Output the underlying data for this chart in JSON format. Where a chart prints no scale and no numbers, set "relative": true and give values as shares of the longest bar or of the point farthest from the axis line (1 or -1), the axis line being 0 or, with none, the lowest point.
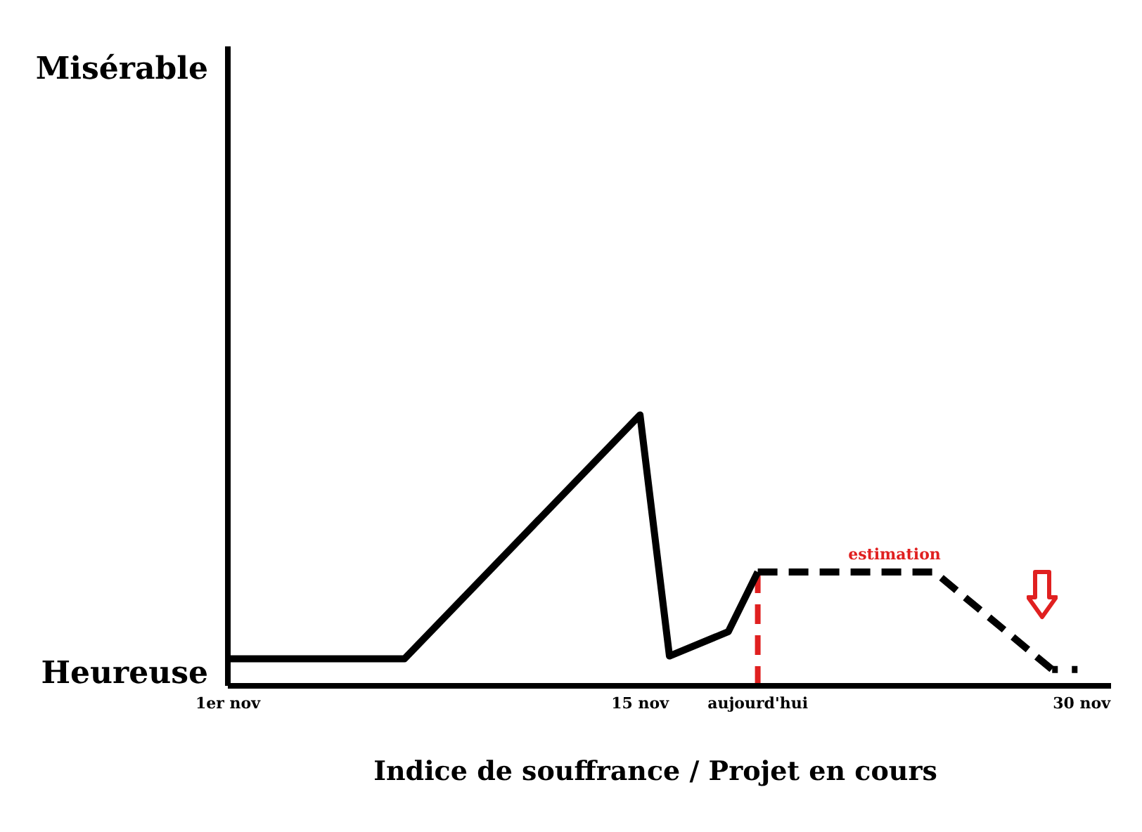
{
  "chart_data": {
    "type": "line",
    "relative": true,
    "xlabel": "Indice de souffrance / Projet en cours",
    "xlim": [
      "--11-01",
      "--12-01"
    ],
    "xticks": [
      {
        "value": "--11-01",
        "label": "1er nov"
      },
      {
        "value": "--11-15",
        "label": "15 nov"
      },
      {
        "value": "--11-19",
        "label": "aujourd'hui"
      },
      {
        "value": "--11-30",
        "label": "30 nov"
      }
    ],
    "marker": "none",
    "series": [
      {
        "color": "#000000",
        "line_style": "solid",
        "x": [
          "--11-01",
          "--11-07",
          "--11-15",
          "--11-16",
          "--11-18",
          "--11-19"
        ],
        "values": [
          0.1,
          0.1,
          1,
          0.11,
          0.2,
          0.42
        ]
      },
      {
        "color": "#000000",
        "line_style": "dashed",
        "x": [
          "--11-19",
          "--11-25",
          "--11-29"
        ],
        "values": [
          0.42,
          0.42,
          0.06
        ]
      },
      {
        "color": "#000000",
        "line_style": "dotted",
        "x": [
          "--11-29",
          "--11-30"
        ],
        "values": [
          0.06,
          0.06
        ]
      }
    ],
    "ref_lines": [
      {
        "axis": "x",
        "value": "--11-01",
        "color": "#000000",
        "line_style": "solid"
      },
      {
        "axis": "x",
        "value": "--11-19",
        "color": "#e02020",
        "line_style": "dashed"
      }
    ],
    "annotations": [
      "Misérable",
      "Heureuse",
      "estimation"
    ]
  }
}
